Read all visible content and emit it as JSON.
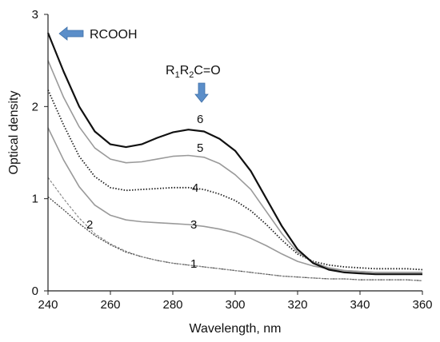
{
  "chart_data": {
    "type": "line",
    "xlabel": "Wavelength,  nm",
    "ylabel": "Optical density",
    "xlim": [
      240,
      360
    ],
    "ylim": [
      0,
      3
    ],
    "xticks": [
      240,
      260,
      280,
      300,
      320,
      340,
      360
    ],
    "yticks": [
      0,
      1,
      2,
      3
    ],
    "x": [
      240,
      245,
      250,
      255,
      260,
      265,
      270,
      275,
      280,
      285,
      290,
      295,
      300,
      305,
      310,
      315,
      320,
      325,
      330,
      335,
      340,
      345,
      350,
      355,
      360
    ],
    "series": [
      {
        "name": "1",
        "style": "dashed-dark",
        "values": [
          1.02,
          0.88,
          0.73,
          0.6,
          0.5,
          0.42,
          0.37,
          0.33,
          0.3,
          0.28,
          0.26,
          0.24,
          0.22,
          0.2,
          0.18,
          0.16,
          0.15,
          0.14,
          0.13,
          0.13,
          0.12,
          0.12,
          0.12,
          0.12,
          0.11
        ]
      },
      {
        "name": "2",
        "style": "dashed-gray",
        "values": [
          1.23,
          1.0,
          0.79,
          0.62,
          0.51,
          0.43,
          0.37,
          0.33,
          0.3,
          0.28,
          0.26,
          0.24,
          0.22,
          0.2,
          0.18,
          0.16,
          0.15,
          0.14,
          0.13,
          0.13,
          0.12,
          0.12,
          0.12,
          0.12,
          0.11
        ]
      },
      {
        "name": "3",
        "style": "solid-gray",
        "values": [
          1.77,
          1.42,
          1.13,
          0.93,
          0.82,
          0.77,
          0.75,
          0.74,
          0.73,
          0.72,
          0.7,
          0.67,
          0.63,
          0.57,
          0.49,
          0.4,
          0.32,
          0.27,
          0.24,
          0.22,
          0.21,
          0.2,
          0.2,
          0.2,
          0.2
        ]
      },
      {
        "name": "4",
        "style": "dotted-dark",
        "values": [
          2.18,
          1.8,
          1.46,
          1.24,
          1.12,
          1.09,
          1.1,
          1.11,
          1.12,
          1.12,
          1.1,
          1.05,
          0.98,
          0.87,
          0.72,
          0.55,
          0.4,
          0.32,
          0.28,
          0.26,
          0.25,
          0.24,
          0.24,
          0.24,
          0.23
        ]
      },
      {
        "name": "5",
        "style": "solid-gray",
        "values": [
          2.5,
          2.1,
          1.78,
          1.55,
          1.43,
          1.39,
          1.4,
          1.43,
          1.46,
          1.47,
          1.45,
          1.38,
          1.26,
          1.1,
          0.86,
          0.62,
          0.42,
          0.31,
          0.25,
          0.22,
          0.21,
          0.2,
          0.2,
          0.2,
          0.2
        ]
      },
      {
        "name": "6",
        "style": "solid-black",
        "values": [
          2.8,
          2.38,
          2.0,
          1.73,
          1.59,
          1.56,
          1.59,
          1.66,
          1.72,
          1.75,
          1.73,
          1.65,
          1.52,
          1.3,
          1.0,
          0.7,
          0.45,
          0.3,
          0.23,
          0.2,
          0.19,
          0.18,
          0.18,
          0.18,
          0.18
        ]
      }
    ],
    "annotations": {
      "rcooh": "RCOOH",
      "carbonyl": {
        "r": "R",
        "sub1": "1",
        "sub2": "2",
        "tail": "C=O"
      }
    },
    "arrow_color": "#5b8ec9",
    "grid": false
  }
}
